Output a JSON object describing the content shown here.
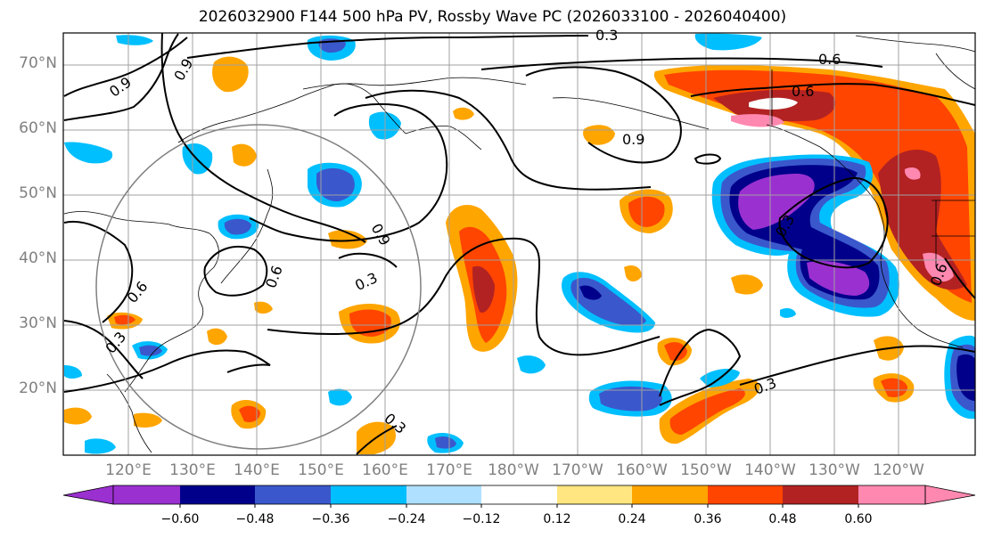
{
  "title": "2026032900 F144 500 hPa PV, Rossby Wave PC (2026033100 - 2026040400)",
  "map": {
    "lon_range": [
      110,
      252
    ],
    "lat_range": [
      10,
      75
    ],
    "lat_labels": [
      "70°N",
      "60°N",
      "50°N",
      "40°N",
      "30°N",
      "20°N"
    ],
    "lon_labels": [
      "120°E",
      "130°E",
      "140°E",
      "150°E",
      "160°E",
      "170°E",
      "180°W",
      "170°W",
      "160°W",
      "150°W",
      "140°W",
      "130°W",
      "120°W"
    ],
    "contour_labels": [
      "0.3",
      "0.6",
      "0.9"
    ]
  },
  "colorbar": {
    "colors": [
      "#9b30d0",
      "#00008b",
      "#3a58cc",
      "#00bfff",
      "#b0e0ff",
      "#ffffff",
      "#ffe680",
      "#ffa500",
      "#ff4500",
      "#b22222",
      "#ff88b0"
    ],
    "tick_labels": [
      "−0.60",
      "−0.48",
      "−0.36",
      "−0.24",
      "−0.12",
      "0.12",
      "0.24",
      "0.36",
      "0.48",
      "0.60"
    ]
  },
  "colors": {
    "axis_label": "#808080",
    "grid": "#a0a0a0",
    "contour": "#000000",
    "highlight_circle": "#808080"
  }
}
